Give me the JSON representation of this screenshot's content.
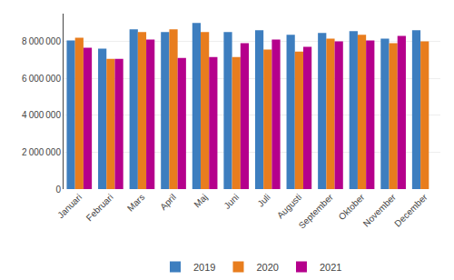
{
  "chart_data": {
    "type": "bar",
    "categories": [
      "Januari",
      "Februari",
      "Mars",
      "April",
      "Maj",
      "Juni",
      "Juli",
      "Augusti",
      "September",
      "Oktober",
      "November",
      "December"
    ],
    "series": [
      {
        "name": "2019",
        "color": "#3d7ebf",
        "values": [
          8050000,
          7600000,
          8650000,
          8500000,
          9000000,
          8500000,
          8600000,
          8350000,
          8450000,
          8550000,
          8150000,
          8600000
        ]
      },
      {
        "name": "2020",
        "color": "#e87d1e",
        "values": [
          8200000,
          7050000,
          8500000,
          8650000,
          8500000,
          7150000,
          7550000,
          7450000,
          8150000,
          8350000,
          7900000,
          8000000
        ]
      },
      {
        "name": "2021",
        "color": "#b5008c",
        "values": [
          7650000,
          7050000,
          8100000,
          7100000,
          7150000,
          7900000,
          8100000,
          7700000,
          8000000,
          8050000,
          8300000,
          null
        ]
      }
    ],
    "ylim": [
      0,
      9500000
    ],
    "yticks": [
      0,
      {
        "value": 2000000,
        "label": "2 000 000"
      },
      {
        "value": 4000000,
        "label": "4 000 000"
      },
      {
        "value": 6000000,
        "label": "6 000 000"
      },
      {
        "value": 8000000,
        "label": "8 000 000"
      }
    ],
    "grid": true,
    "legend": "bottom"
  }
}
